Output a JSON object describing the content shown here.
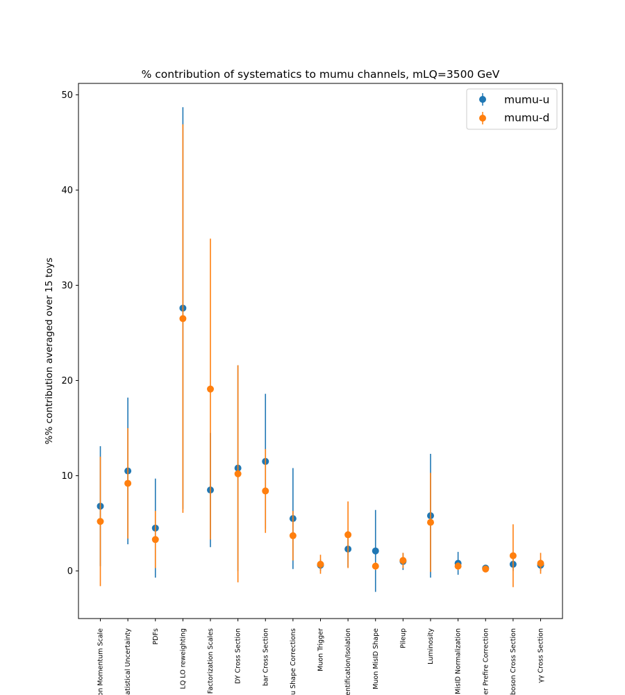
{
  "chart_data": {
    "type": "scatter",
    "title": "% contribution of systematics to mumu channels, mLQ=3500 GeV",
    "xlabel": "",
    "ylabel": "%% contribution averaged over 15 toys",
    "ylim": [
      -5,
      51.2
    ],
    "yticks": [
      0,
      10,
      20,
      30,
      40,
      50
    ],
    "legend_position": "top-right",
    "grid": false,
    "categories": [
      "on Momentum Scale",
      "atistical Uncertainty",
      "PDFs",
      "LQ LO reweighting",
      "Factorization Scales",
      "DY Cross Section",
      "bar Cross Section",
      "u Shape Corrections",
      "Muon Trigger",
      "entification/Isolation",
      "Muon MisID Shape",
      "Pileup",
      "Luminosity",
      "MisID Normalization",
      "er Prefire Correction",
      "boson Cross Section",
      "γγ Cross Section"
    ],
    "series": [
      {
        "name": "mumu-u",
        "color": "#1f77b4",
        "values": [
          6.8,
          10.5,
          4.5,
          27.6,
          8.5,
          10.8,
          11.5,
          5.5,
          0.6,
          2.3,
          2.1,
          1.0,
          5.8,
          0.8,
          0.3,
          0.7,
          0.6
        ],
        "errors": [
          6.3,
          7.7,
          5.2,
          21.1,
          6.0,
          10.8,
          7.1,
          5.3,
          0.6,
          1.9,
          4.3,
          0.9,
          6.5,
          1.2,
          0.3,
          0.7,
          0.6
        ]
      },
      {
        "name": "mumu-d",
        "color": "#ff7f0e",
        "values": [
          5.2,
          9.2,
          3.3,
          26.5,
          19.1,
          10.2,
          8.4,
          3.7,
          0.7,
          3.8,
          0.5,
          1.1,
          5.1,
          0.5,
          0.2,
          1.6,
          0.8
        ],
        "errors": [
          6.8,
          5.8,
          3.0,
          20.4,
          15.8,
          11.4,
          4.4,
          2.6,
          1.0,
          3.5,
          0.4,
          0.8,
          5.2,
          0.4,
          0.2,
          3.3,
          1.1
        ]
      }
    ]
  }
}
